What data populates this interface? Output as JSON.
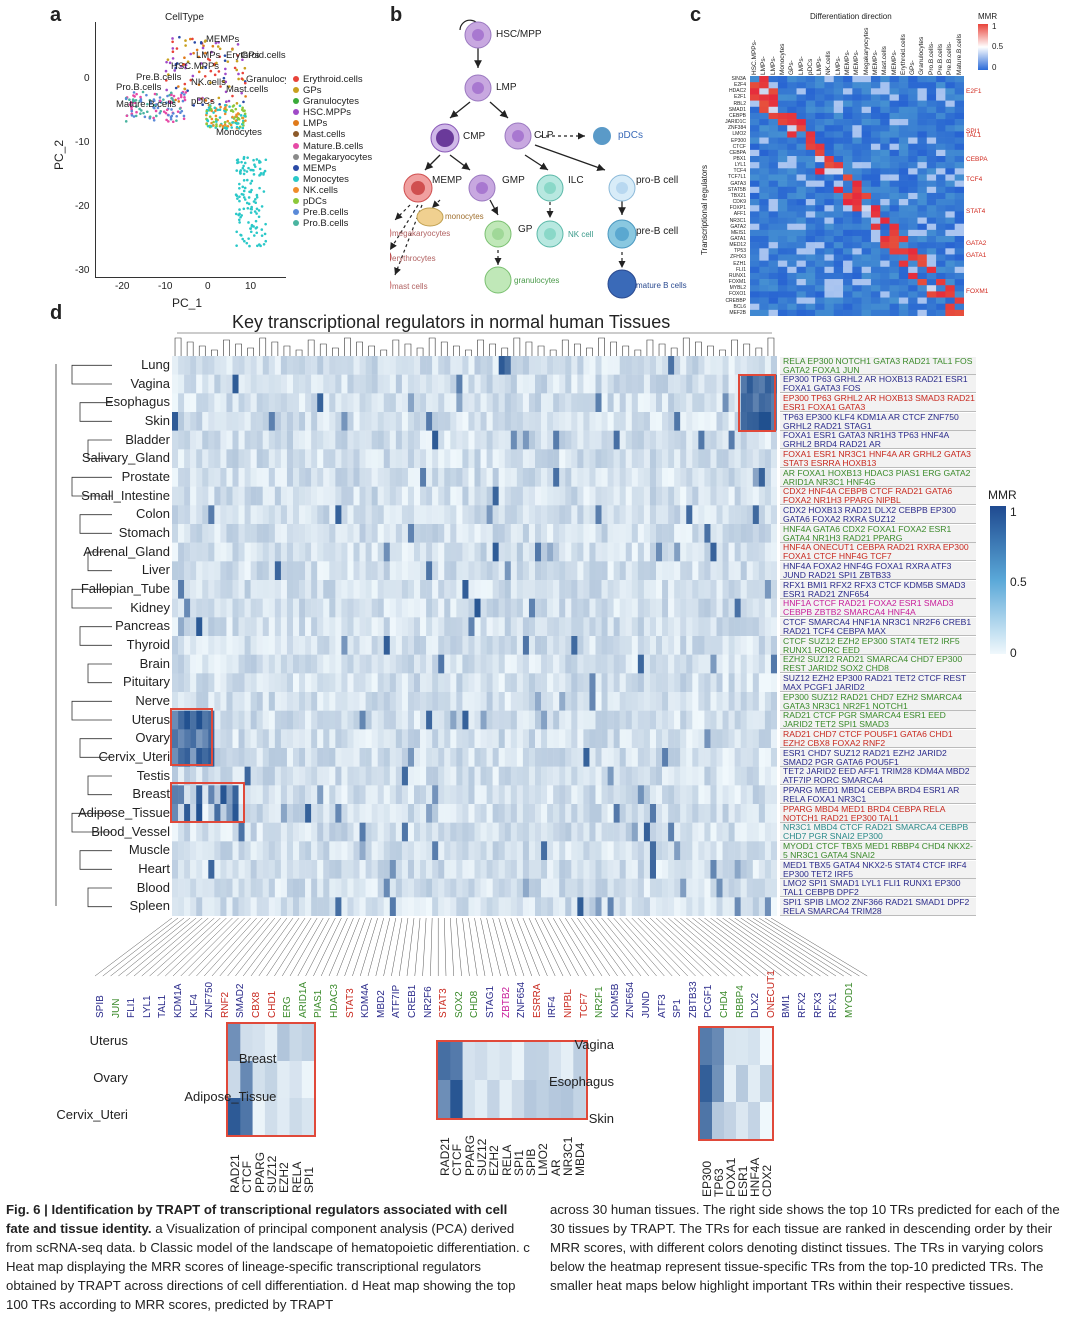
{
  "panels": {
    "a": {
      "label": "a",
      "title": "CellType",
      "xlabel": "PC_1",
      "ylabel": "PC_2",
      "xticks": [
        "-20",
        "-10",
        "0",
        "10"
      ],
      "yticks": [
        "0",
        "-10",
        "-20",
        "-30"
      ],
      "cluster_labels": [
        "MEMPs",
        "Erythroid.cells",
        "LMPs",
        "HSC.MPPs",
        "GPs",
        "Granulocytes",
        "Pre.B.cells",
        "NK.cells",
        "Mast.cells",
        "Pro.B.cells",
        "pDCs",
        "Mature.B.cells",
        "Monocytes"
      ],
      "legend": [
        {
          "label": "Erythroid.cells",
          "color": "#e8433a"
        },
        {
          "label": "GPs",
          "color": "#c8a01e"
        },
        {
          "label": "Granulocytes",
          "color": "#3aaa3a"
        },
        {
          "label": "HSC.MPPs",
          "color": "#a04ac8"
        },
        {
          "label": "LMPs",
          "color": "#e07a1a"
        },
        {
          "label": "Mast.cells",
          "color": "#8c5a2a"
        },
        {
          "label": "Mature.B.cells",
          "color": "#e64aa6"
        },
        {
          "label": "Megakaryocytes",
          "color": "#8a8a8a"
        },
        {
          "label": "MEMPs",
          "color": "#2a4aa6"
        },
        {
          "label": "Monocytes",
          "color": "#2ac8c8"
        },
        {
          "label": "NK.cells",
          "color": "#f08c2a"
        },
        {
          "label": "pDCs",
          "color": "#8cc83a"
        },
        {
          "label": "Pre.B.cells",
          "color": "#5a8ad8"
        },
        {
          "label": "Pro.B.cells",
          "color": "#4ab4a0"
        }
      ]
    },
    "b": {
      "label": "b",
      "nodes": [
        "HSC/MPP",
        "LMP",
        "CMP",
        "CLP",
        "pDCs",
        "MEMP",
        "GMP",
        "ILC",
        "pro-B cell",
        "monocytes",
        "megakaryocytes",
        "erythrocytes",
        "mast cells",
        "GP",
        "granulocytes",
        "NK cell",
        "pre-B cell",
        "mature B cells"
      ]
    },
    "c": {
      "label": "c",
      "title": "Differentiation direction",
      "ylabel": "Transcriptional regulators",
      "legend_title": "MMR",
      "legend_ticks": [
        "1",
        "0.5",
        "0"
      ],
      "columns": [
        "HSC.MPPs-",
        "LMPs-",
        "LMPs-",
        "Monocytes",
        "GPs-",
        "LMPs-",
        "pDCs",
        "LMPs-",
        "NK.cells",
        "LMPs-",
        "MEMPs-",
        "MEMPs-",
        "Megakaryocytes",
        "MEMPs-",
        "Mast.cells",
        "MEMPs-",
        "Erythroid.cells",
        "GPs-",
        "Granulocytes",
        "Pro.B.cells-",
        "Pre.B.cells",
        "Pre.B.cells-",
        "Mature.B.cells"
      ],
      "rows": [
        "SIN3A",
        "E2F4",
        "HDAC2",
        "E2F1",
        "RBL2",
        "SMAD1",
        "CEBPB",
        "JARID1C",
        "ZNF384",
        "LMO2",
        "EP300",
        "CTCF",
        "CEBPA",
        "PBX1",
        "LYL1",
        "TCF4",
        "TCF7L1",
        "GATA3",
        "STAT5B",
        "TBX21",
        "CDK9",
        "FOXP1",
        "AFF1",
        "NR3C1",
        "GATA2",
        "MEIS1",
        "GATA1",
        "MED12",
        "TP53",
        "ZFHX3",
        "EZH1",
        "FLI1",
        "RUNX1",
        "FOXM1",
        "MYBL2",
        "FOXO1",
        "CREBBP",
        "BCL6",
        "MEF2B"
      ],
      "highlights": [
        "E2F1",
        "SPI1",
        "TAL1",
        "CEBPA",
        "TCF4",
        "STAT4",
        "GATA2",
        "GATA1",
        "FOXM1"
      ]
    },
    "d": {
      "label": "d",
      "title": "Key transcriptional regulators in normal human Tissues",
      "legend_title": "MMR",
      "legend_ticks": [
        "1",
        "0.5",
        "0"
      ],
      "tissues": [
        "Lung",
        "Vagina",
        "Esophagus",
        "Skin",
        "Bladder",
        "Salivary_Gland",
        "Prostate",
        "Small_Intestine",
        "Colon",
        "Stomach",
        "Adrenal_Gland",
        "Liver",
        "Fallopian_Tube",
        "Kidney",
        "Pancreas",
        "Thyroid",
        "Brain",
        "Pituitary",
        "Nerve",
        "Uterus",
        "Ovary",
        "Cervix_Uteri",
        "Testis",
        "Breast",
        "Adipose_Tissue",
        "Blood_Vessel",
        "Muscle",
        "Heart",
        "Blood",
        "Spleen"
      ],
      "top_trs": [
        {
          "text": "RELA EP300 NOTCH1 GATA3 RAD21 TAL1 FOS GATA2 FOXA1 JUN",
          "color": "#3a8a2a"
        },
        {
          "text": "EP300 TP63 GRHL2 AR HOXB13 RAD21 ESR1 FOXA1 GATA3 FOS",
          "color": "#2a2a8a"
        },
        {
          "text": "EP300 TP63 GRHL2 AR HOXB13 SMAD3 RAD21 ESR1 FOXA1 GATA3",
          "color": "#c8281e"
        },
        {
          "text": "TP63 EP300 KLF4 KDM1A AR CTCF ZNF750 GRHL2 RAD21 STAG1",
          "color": "#2a2a8a"
        },
        {
          "text": "FOXA1 ESR1 GATA3 NR1H3 TP63 HNF4A GRHL2 BRD4 RAD21 AR",
          "color": "#2a2a8a"
        },
        {
          "text": "FOXA1 ESR1 NR3C1 HNF4A AR GRHL2 GATA3 STAT3 ESRRA HOXB13",
          "color": "#c8281e"
        },
        {
          "text": "AR FOXA1 HOXB13 HDAC3 PIAS1 ERG GATA2 ARID1A NR3C1 HNF4G",
          "color": "#3a8a2a"
        },
        {
          "text": "CDX2 HNF4A CEBPB CTCF RAD21 GATA6 FOXA2 NR1H3 PPARG NIPBL",
          "color": "#c8281e"
        },
        {
          "text": "CDX2 HOXB13 RAD21 DLX2 CEBPB EP300 GATA6 FOXA2 RXRA SUZ12",
          "color": "#2a2a8a"
        },
        {
          "text": "HNF4A GATA6 CDX2 FOXA1 FOXA2 ESR1 GATA4 NR1H3 RAD21 PPARG",
          "color": "#3a8a2a"
        },
        {
          "text": "HNF4A ONECUT1 CEBPA RAD21 RXRA EP300 FOXA1 CTCF HNF4G TCF7",
          "color": "#c8281e"
        },
        {
          "text": "HNF4A FOXA2 HNF4G FOXA1 RXRA ATF3 JUND RAD21 SPI1 ZBTB33",
          "color": "#2a2a8a"
        },
        {
          "text": "RFX1 BMI1 RFX2 RFX3 CTCF KDM5B SMAD3 ESR1 RAD21 ZNF654",
          "color": "#2a2a8a"
        },
        {
          "text": "HNF1A CTCF RAD21 FOXA2 ESR1 SMAD3 CEBPB ZBTB2 SMARCA4 HNF4A",
          "color": "#c81e9a"
        },
        {
          "text": "CTCF SMARCA4 HNF1A NR3C1 NR2F6 CREB1 RAD21 TCF4 CEBPA MAX",
          "color": "#2a2a8a"
        },
        {
          "text": "CTCF SUZ12 EZH2 EP300 STAT4 TET2 IRF5 RUNX1 RORC EED",
          "color": "#3a8a2a"
        },
        {
          "text": "EZH2 SUZ12 RAD21 SMARCA4 CHD7 EP300 REST JARID2 SOX2 CHD8",
          "color": "#3a8a2a"
        },
        {
          "text": "SUZ12 EZH2 EP300 RAD21 TET2 CTCF REST MAX PCGF1 JARID2",
          "color": "#2a2a8a"
        },
        {
          "text": "EP300 SUZ12 RAD21 CHD7 EZH2 SMARCA4 GATA3 NR3C1 NR2F1 NOTCH1",
          "color": "#3a8a2a"
        },
        {
          "text": "RAD21 CTCF PGR SMARCA4 ESR1 EED JARID2 TET2 SPI1 SMAD3",
          "color": "#3a8a2a"
        },
        {
          "text": "RAD21 CHD7 CTCF POU5F1 GATA6 CHD1 EZH2 CBX8 FOXA2 RNF2",
          "color": "#c8281e"
        },
        {
          "text": "ESR1 CHD7 SUZ12 RAD21 EZH2 JARID2 SMAD2 PGR GATA6 POU5F1",
          "color": "#2a2a8a"
        },
        {
          "text": "TET2 JARID2 EED AFF1 TRIM28 KDM4A MBD2 ATF7IP RORC SMARCA4",
          "color": "#2a2a8a"
        },
        {
          "text": "PPARG MED1 MBD4 CEBPA BRD4 ESR1 AR RELA FOXA1 NR3C1",
          "color": "#2a2a8a"
        },
        {
          "text": "PPARG MBD4 MED1 BRD4 CEBPA RELA NOTCH1 RAD21 EP300 TAL1",
          "color": "#c8281e"
        },
        {
          "text": "NR3C1 MBD4 CTCF RAD21 SMARCA4 CEBPB CHD7 PGR SNAI2 EP300",
          "color": "#2a8a8a"
        },
        {
          "text": "MYOD1 CTCF TBX5 MED1 RBBP4 CHD4 NKX2-5 NR3C1 GATA4 SNAI2",
          "color": "#3a8a2a"
        },
        {
          "text": "MED1 TBX5 GATA4 NKX2-5 STAT4 CTCF IRF4 EP300 TET2 IRF5",
          "color": "#2a2a8a"
        },
        {
          "text": "LMO2 SPI1 SMAD1 LYL1 FLI1 RUNX1 EP300 TAL1 CEBPB DPF2",
          "color": "#2a2a8a"
        },
        {
          "text": "SPI1 SPIB LMO2 ZNF366 RAD21 SMAD1 DPF2 RELA SMARCA4 TRIM28",
          "color": "#2a2a8a"
        }
      ],
      "bottom_trs": [
        {
          "text": "SPIB",
          "color": "#2a2a8a"
        },
        {
          "text": "JUN",
          "color": "#3a8a2a"
        },
        {
          "text": "FLI1",
          "color": "#2a2a8a"
        },
        {
          "text": "LYL1",
          "color": "#2a2a8a"
        },
        {
          "text": "TAL1",
          "color": "#2a2a8a"
        },
        {
          "text": "KDM1A",
          "color": "#2a2a8a"
        },
        {
          "text": "KLF4",
          "color": "#2a2a8a"
        },
        {
          "text": "ZNF750",
          "color": "#2a2a8a"
        },
        {
          "text": "RNF2",
          "color": "#c8281e"
        },
        {
          "text": "SMAD2",
          "color": "#2a2a8a"
        },
        {
          "text": "CBX8",
          "color": "#c8281e"
        },
        {
          "text": "CHD1",
          "color": "#c8281e"
        },
        {
          "text": "ERG",
          "color": "#3a8a2a"
        },
        {
          "text": "ARID1A",
          "color": "#3a8a2a"
        },
        {
          "text": "PIAS1",
          "color": "#3a8a2a"
        },
        {
          "text": "HDAC3",
          "color": "#3a8a2a"
        },
        {
          "text": "STAT3",
          "color": "#c8281e"
        },
        {
          "text": "KDM4A",
          "color": "#2a2a8a"
        },
        {
          "text": "MBD2",
          "color": "#2a2a8a"
        },
        {
          "text": "ATF7IP",
          "color": "#2a2a8a"
        },
        {
          "text": "CREB1",
          "color": "#2a2a8a"
        },
        {
          "text": "NR2F6",
          "color": "#2a2a8a"
        },
        {
          "text": "STAT3",
          "color": "#c8281e"
        },
        {
          "text": "SOX2",
          "color": "#3a8a2a"
        },
        {
          "text": "CHD8",
          "color": "#3a8a2a"
        },
        {
          "text": "STAG1",
          "color": "#2a2a8a"
        },
        {
          "text": "ZBTB2",
          "color": "#c81e9a"
        },
        {
          "text": "ZNF654",
          "color": "#2a2a8a"
        },
        {
          "text": "ESRRA",
          "color": "#c8281e"
        },
        {
          "text": "IRF4",
          "color": "#2a2a8a"
        },
        {
          "text": "NIPBL",
          "color": "#c8281e"
        },
        {
          "text": "TCF7",
          "color": "#c8281e"
        },
        {
          "text": "NR2F1",
          "color": "#3a8a2a"
        },
        {
          "text": "KDM5B",
          "color": "#2a2a8a"
        },
        {
          "text": "ZNF654",
          "color": "#2a2a8a"
        },
        {
          "text": "JUND",
          "color": "#2a2a8a"
        },
        {
          "text": "ATF3",
          "color": "#2a2a8a"
        },
        {
          "text": "SP1",
          "color": "#2a2a8a"
        },
        {
          "text": "ZBTB33",
          "color": "#2a2a8a"
        },
        {
          "text": "PCGF1",
          "color": "#2a2a8a"
        },
        {
          "text": "CHD4",
          "color": "#3a8a2a"
        },
        {
          "text": "RBBP4",
          "color": "#3a8a2a"
        },
        {
          "text": "DLX2",
          "color": "#2a2a8a"
        },
        {
          "text": "ONECUT1",
          "color": "#c8281e"
        },
        {
          "text": "BMI1",
          "color": "#2a2a8a"
        },
        {
          "text": "RFX2",
          "color": "#2a2a8a"
        },
        {
          "text": "RFX3",
          "color": "#2a2a8a"
        },
        {
          "text": "RFX1",
          "color": "#2a2a8a"
        },
        {
          "text": "MYOD1",
          "color": "#3a8a2a"
        }
      ],
      "zoom1": {
        "rows": [
          "Uterus",
          "Ovary",
          "Cervix_Uteri"
        ],
        "cols": [
          "RAD21",
          "CTCF",
          "PPARG",
          "SUZ12",
          "EZH2",
          "RELA",
          "SPI1"
        ]
      },
      "zoom2": {
        "rows": [
          "Breast",
          "Adipose_Tissue"
        ],
        "cols": [
          "RAD21",
          "CTCF",
          "PPARG",
          "SUZ12",
          "EZH2",
          "RELA",
          "SPI1",
          "SPIB",
          "LMO2",
          "AR",
          "NR3C1",
          "MBD4"
        ]
      },
      "zoom3": {
        "rows": [
          "Vagina",
          "Esophagus",
          "Skin"
        ],
        "cols": [
          "EP300",
          "TP63",
          "FOXA1",
          "ESR1",
          "HNF4A",
          "CDX2"
        ]
      }
    }
  },
  "caption": {
    "left_bold": "Fig. 6 | Identification by TRAPT of transcriptional regulators associated with cell fate and tissue identity.",
    "left_rest": "a Visualization of principal component analysis (PCA) derived from scRNA-seq data. b Classic model of the landscape of hematopoietic differentiation. c Heat map displaying the MRR scores of lineage-specific transcriptional regulators obtained by TRAPT across directions of cell differentiation. d Heat map showing the top 100 TRs according to MRR scores, predicted by TRAPT",
    "right": "across 30 human tissues. The right side shows the top 10 TRs predicted for each of the 30 tissues by TRAPT. The TRs for each tissue are ranked in descending order by their MRR scores, with different colors denoting distinct tissues. The TRs in varying colors below the heatmap represent tissue-specific TRs from the top-10 predicted TRs. The smaller heat maps below highlight important TRs within their respective tissues."
  }
}
